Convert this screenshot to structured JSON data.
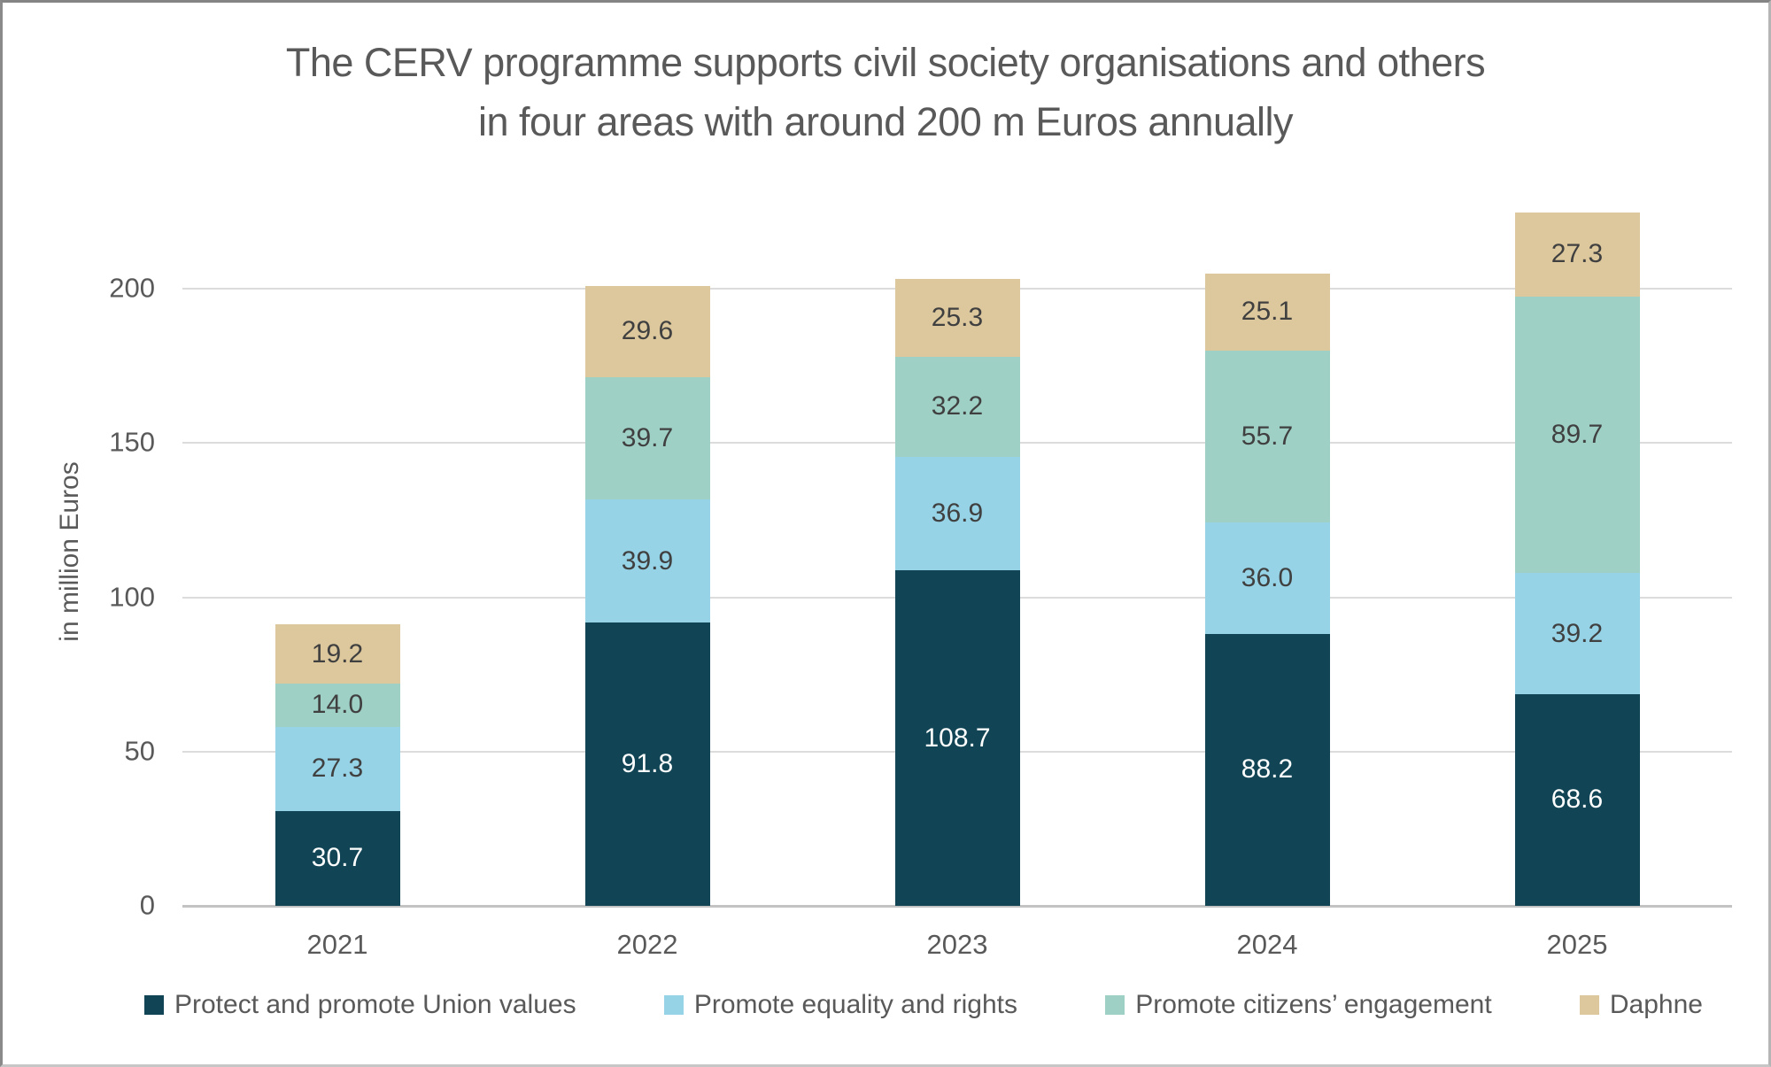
{
  "title": {
    "line1": "The CERV programme supports civil society organisations and others",
    "line2": "in four areas with around 200 m Euros annually"
  },
  "chart_data": {
    "type": "bar",
    "stacked": true,
    "title": "The CERV programme supports civil society organisations and others in four areas with around 200 m Euros annually",
    "xlabel": "",
    "ylabel": "in million Euros",
    "categories": [
      "2021",
      "2022",
      "2023",
      "2024",
      "2025"
    ],
    "series": [
      {
        "name": "Protect and promote Union values",
        "color": "#114454",
        "label_color": "#ffffff",
        "values": [
          30.7,
          91.8,
          108.7,
          88.2,
          68.6
        ]
      },
      {
        "name": "Promote equality and rights",
        "color": "#96d3e6",
        "label_color": "#404040",
        "values": [
          27.3,
          39.9,
          36.9,
          36.0,
          39.2
        ]
      },
      {
        "name": "Promote citizens’ engagement",
        "color": "#9fd0c6",
        "label_color": "#404040",
        "values": [
          14.0,
          39.7,
          32.2,
          55.7,
          89.7
        ]
      },
      {
        "name": "Daphne",
        "color": "#ddc89d",
        "label_color": "#404040",
        "values": [
          19.2,
          29.6,
          25.3,
          25.1,
          27.3
        ]
      }
    ],
    "totals": [
      91.2,
      201.0,
      203.1,
      205.0,
      224.8
    ],
    "yticks": [
      0,
      50,
      100,
      150,
      200
    ],
    "ylim": [
      0,
      230
    ],
    "value_decimals": 1,
    "grid": true,
    "legend_position": "bottom",
    "axis_text_color": "#595959",
    "gridline_color": "#dcdcdc"
  }
}
